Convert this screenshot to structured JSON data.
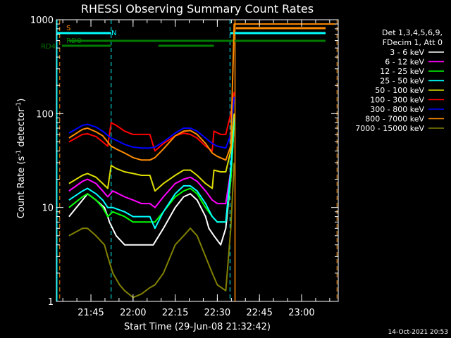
{
  "chart_data": {
    "type": "line",
    "title": "RHESSI Observing Summary Count Rates",
    "xlabel": "Start Time (29-Jun-08 21:32:42)",
    "ylabel": "Count Rate (s",
    "ylabel_sup": "-1",
    "ylabel_mid": " detector",
    "ylabel_end": ")",
    "y_scale": "log",
    "ylim": [
      1,
      1000
    ],
    "xlim": [
      21.545,
      23.2175
    ],
    "x_ticks": [
      "21:45",
      "22:00",
      "22:15",
      "22:30",
      "22:45",
      "23:00"
    ],
    "y_ticks": [
      "1",
      "10",
      "100",
      "1000"
    ],
    "legend_header": [
      "Det 1,3,4,5,6,9,",
      "FDecim 1, Att 0"
    ],
    "flags": [
      {
        "name": "S",
        "color": "#ff8c00"
      },
      {
        "name": "N",
        "color": "#00ffff"
      },
      {
        "name": "RDO",
        "color": "#007a00"
      },
      {
        "name": "RD4",
        "color": "#007a00"
      }
    ],
    "timestamp": "14-Oct-2021 20:53",
    "series": [
      {
        "name": "3 - 6 keV",
        "color": "#ffffff",
        "values": [
          [
            21.62,
            8
          ],
          [
            21.7,
            12
          ],
          [
            21.73,
            14
          ],
          [
            21.78,
            12
          ],
          [
            21.83,
            10
          ],
          [
            21.85,
            8
          ],
          [
            21.86,
            7
          ],
          [
            21.9,
            5
          ],
          [
            21.95,
            4
          ],
          [
            22.0,
            4
          ],
          [
            22.05,
            4
          ],
          [
            22.08,
            4
          ],
          [
            22.12,
            4
          ],
          [
            22.18,
            6
          ],
          [
            22.25,
            10
          ],
          [
            22.3,
            13
          ],
          [
            22.34,
            14
          ],
          [
            22.38,
            12
          ],
          [
            22.43,
            8
          ],
          [
            22.45,
            6
          ],
          [
            22.48,
            5
          ],
          [
            22.52,
            4
          ],
          [
            22.55,
            6
          ],
          [
            22.58,
            20
          ],
          [
            22.6,
            80
          ]
        ]
      },
      {
        "name": "6 - 12 keV",
        "color": "#ff00ff",
        "values": [
          [
            21.62,
            15
          ],
          [
            21.7,
            19
          ],
          [
            21.73,
            20
          ],
          [
            21.78,
            18
          ],
          [
            21.82,
            15
          ],
          [
            21.85,
            13
          ],
          [
            21.88,
            15
          ],
          [
            21.95,
            13
          ],
          [
            22.0,
            12
          ],
          [
            22.05,
            11
          ],
          [
            22.1,
            11
          ],
          [
            22.13,
            10
          ],
          [
            22.18,
            13
          ],
          [
            22.25,
            18
          ],
          [
            22.3,
            20
          ],
          [
            22.34,
            21
          ],
          [
            22.38,
            19
          ],
          [
            22.43,
            15
          ],
          [
            22.47,
            12
          ],
          [
            22.5,
            11
          ],
          [
            22.55,
            11
          ],
          [
            22.58,
            25
          ],
          [
            22.6,
            90
          ]
        ]
      },
      {
        "name": "12 - 25 keV",
        "color": "#00ff00",
        "values": [
          [
            21.62,
            10
          ],
          [
            21.7,
            13
          ],
          [
            21.73,
            14
          ],
          [
            21.78,
            12
          ],
          [
            21.82,
            10
          ],
          [
            21.85,
            8
          ],
          [
            21.88,
            9
          ],
          [
            21.95,
            8
          ],
          [
            22.0,
            7
          ],
          [
            22.05,
            7
          ],
          [
            22.1,
            7
          ],
          [
            22.13,
            7
          ],
          [
            22.18,
            9
          ],
          [
            22.25,
            13
          ],
          [
            22.3,
            15
          ],
          [
            22.34,
            16
          ],
          [
            22.38,
            14
          ],
          [
            22.43,
            10
          ],
          [
            22.47,
            8
          ],
          [
            22.5,
            7
          ],
          [
            22.55,
            7
          ],
          [
            22.58,
            20
          ],
          [
            22.6,
            80
          ]
        ]
      },
      {
        "name": "25 - 50 keV",
        "color": "#00ffff",
        "values": [
          [
            21.62,
            12
          ],
          [
            21.7,
            15
          ],
          [
            21.73,
            16
          ],
          [
            21.78,
            14
          ],
          [
            21.82,
            12
          ],
          [
            21.85,
            10
          ],
          [
            21.88,
            10
          ],
          [
            21.95,
            9
          ],
          [
            22.0,
            8
          ],
          [
            22.05,
            8
          ],
          [
            22.1,
            8
          ],
          [
            22.13,
            6
          ],
          [
            22.18,
            9
          ],
          [
            22.25,
            14
          ],
          [
            22.3,
            17
          ],
          [
            22.34,
            17
          ],
          [
            22.38,
            15
          ],
          [
            22.43,
            11
          ],
          [
            22.47,
            8
          ],
          [
            22.5,
            7
          ],
          [
            22.55,
            7
          ],
          [
            22.58,
            25
          ],
          [
            22.6,
            90
          ]
        ]
      },
      {
        "name": "50 - 100 keV",
        "color": "#dddd00",
        "values": [
          [
            21.62,
            18
          ],
          [
            21.7,
            22
          ],
          [
            21.73,
            23
          ],
          [
            21.78,
            21
          ],
          [
            21.82,
            18
          ],
          [
            21.85,
            16
          ],
          [
            21.87,
            28
          ],
          [
            21.9,
            26
          ],
          [
            21.95,
            24
          ],
          [
            22.0,
            23
          ],
          [
            22.05,
            22
          ],
          [
            22.1,
            22
          ],
          [
            22.13,
            15
          ],
          [
            22.18,
            18
          ],
          [
            22.25,
            22
          ],
          [
            22.3,
            25
          ],
          [
            22.34,
            25
          ],
          [
            22.38,
            22
          ],
          [
            22.43,
            18
          ],
          [
            22.47,
            16
          ],
          [
            22.48,
            25
          ],
          [
            22.52,
            24
          ],
          [
            22.55,
            24
          ],
          [
            22.58,
            40
          ],
          [
            22.6,
            100
          ]
        ]
      },
      {
        "name": "100 - 300 keV",
        "color": "#ff0000",
        "values": [
          [
            21.62,
            50
          ],
          [
            21.7,
            60
          ],
          [
            21.73,
            61
          ],
          [
            21.78,
            57
          ],
          [
            21.82,
            50
          ],
          [
            21.85,
            45
          ],
          [
            21.87,
            80
          ],
          [
            21.9,
            75
          ],
          [
            21.95,
            65
          ],
          [
            22.0,
            60
          ],
          [
            22.05,
            60
          ],
          [
            22.1,
            60
          ],
          [
            22.13,
            40
          ],
          [
            22.18,
            48
          ],
          [
            22.25,
            58
          ],
          [
            22.3,
            62
          ],
          [
            22.34,
            60
          ],
          [
            22.38,
            55
          ],
          [
            22.43,
            45
          ],
          [
            22.47,
            40
          ],
          [
            22.48,
            65
          ],
          [
            22.52,
            60
          ],
          [
            22.55,
            60
          ],
          [
            22.58,
            100
          ],
          [
            22.6,
            170
          ]
        ]
      },
      {
        "name": "300 - 800 keV",
        "color": "#0000ff",
        "values": [
          [
            21.62,
            62
          ],
          [
            21.7,
            75
          ],
          [
            21.73,
            77
          ],
          [
            21.78,
            72
          ],
          [
            21.82,
            65
          ],
          [
            21.87,
            55
          ],
          [
            21.9,
            52
          ],
          [
            21.95,
            47
          ],
          [
            22.0,
            44
          ],
          [
            22.05,
            43
          ],
          [
            22.1,
            43
          ],
          [
            22.13,
            44
          ],
          [
            22.18,
            50
          ],
          [
            22.25,
            62
          ],
          [
            22.3,
            70
          ],
          [
            22.34,
            70
          ],
          [
            22.38,
            65
          ],
          [
            22.43,
            55
          ],
          [
            22.47,
            48
          ],
          [
            22.5,
            45
          ],
          [
            22.55,
            43
          ],
          [
            22.58,
            60
          ],
          [
            22.6,
            150
          ]
        ]
      },
      {
        "name": "800 - 7000 keV",
        "color": "#ff8c00",
        "values": [
          [
            21.62,
            55
          ],
          [
            21.7,
            68
          ],
          [
            21.73,
            70
          ],
          [
            21.78,
            64
          ],
          [
            21.82,
            58
          ],
          [
            21.87,
            45
          ],
          [
            21.9,
            42
          ],
          [
            21.95,
            38
          ],
          [
            22.0,
            34
          ],
          [
            22.05,
            32
          ],
          [
            22.1,
            32
          ],
          [
            22.13,
            34
          ],
          [
            22.18,
            42
          ],
          [
            22.25,
            58
          ],
          [
            22.3,
            65
          ],
          [
            22.34,
            66
          ],
          [
            22.38,
            60
          ],
          [
            22.43,
            48
          ],
          [
            22.47,
            38
          ],
          [
            22.5,
            35
          ],
          [
            22.55,
            32
          ],
          [
            22.58,
            45
          ],
          [
            22.6,
            900
          ],
          [
            23.2,
            900
          ]
        ]
      },
      {
        "name": "7000 - 15000 keV",
        "color": "#808000",
        "values": [
          [
            21.62,
            5
          ],
          [
            21.7,
            6
          ],
          [
            21.73,
            6
          ],
          [
            21.78,
            5
          ],
          [
            21.83,
            4
          ],
          [
            21.85,
            3
          ],
          [
            21.88,
            2
          ],
          [
            21.92,
            1.5
          ],
          [
            21.95,
            1.3
          ],
          [
            22.0,
            1.1
          ],
          [
            22.05,
            1.2
          ],
          [
            22.1,
            1.4
          ],
          [
            22.13,
            1.5
          ],
          [
            22.18,
            2
          ],
          [
            22.25,
            4
          ],
          [
            22.3,
            5
          ],
          [
            22.34,
            6
          ],
          [
            22.38,
            5
          ],
          [
            22.43,
            3
          ],
          [
            22.47,
            2
          ],
          [
            22.5,
            1.5
          ],
          [
            22.55,
            1.3
          ],
          [
            22.58,
            6
          ],
          [
            22.6,
            30
          ]
        ]
      }
    ]
  }
}
